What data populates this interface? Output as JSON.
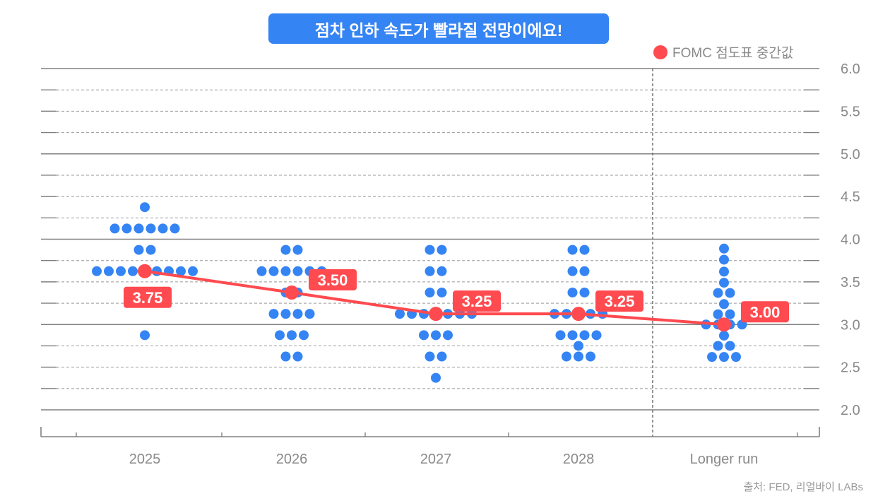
{
  "title": "점차 인하 속도가 빨라질 전망이에요!",
  "legend": {
    "label": "FOMC 점도표 중간값",
    "color": "#ff4a4f"
  },
  "source": "출처: FED, 리얼바이 LABs",
  "colors": {
    "dot": "#3584f4",
    "median": "#ff4a4f",
    "title_bg": "#3584f4"
  },
  "chart_data": {
    "type": "scatter",
    "title": "점차 인하 속도가 빨라질 전망이에요!",
    "xlabel": "",
    "ylabel": "",
    "ylim": [
      2.0,
      6.0
    ],
    "yticks": [
      "2.0",
      "2.5",
      "3.0",
      "3.5",
      "4.0",
      "4.5",
      "5.0",
      "5.5",
      "6.0"
    ],
    "grid": true,
    "legend_position": "top-right",
    "categories": [
      "2025",
      "2026",
      "2027",
      "2028",
      "Longer run"
    ],
    "dots": [
      [
        {
          "value": 4.375,
          "count": 1
        },
        {
          "value": 4.125,
          "count": 6
        },
        {
          "value": 3.875,
          "count": 2
        },
        {
          "value": 3.625,
          "count": 9
        },
        {
          "value": 2.875,
          "count": 1
        }
      ],
      [
        {
          "value": 3.875,
          "count": 2
        },
        {
          "value": 3.625,
          "count": 6
        },
        {
          "value": 3.375,
          "count": 2
        },
        {
          "value": 3.125,
          "count": 4
        },
        {
          "value": 2.875,
          "count": 3
        },
        {
          "value": 2.625,
          "count": 2
        }
      ],
      [
        {
          "value": 3.875,
          "count": 2
        },
        {
          "value": 3.625,
          "count": 2
        },
        {
          "value": 3.375,
          "count": 2
        },
        {
          "value": 3.125,
          "count": 7
        },
        {
          "value": 2.875,
          "count": 3
        },
        {
          "value": 2.625,
          "count": 2
        },
        {
          "value": 2.375,
          "count": 1
        }
      ],
      [
        {
          "value": 3.875,
          "count": 2
        },
        {
          "value": 3.625,
          "count": 2
        },
        {
          "value": 3.375,
          "count": 2
        },
        {
          "value": 3.125,
          "count": 5
        },
        {
          "value": 2.875,
          "count": 4
        },
        {
          "value": 2.75,
          "count": 1
        },
        {
          "value": 2.625,
          "count": 3
        }
      ],
      [
        {
          "value": 3.89,
          "count": 1
        },
        {
          "value": 3.76,
          "count": 1
        },
        {
          "value": 3.62,
          "count": 1
        },
        {
          "value": 3.49,
          "count": 1
        },
        {
          "value": 3.37,
          "count": 2
        },
        {
          "value": 3.24,
          "count": 1
        },
        {
          "value": 3.12,
          "count": 2
        },
        {
          "value": 3.0,
          "count": 4
        },
        {
          "value": 2.87,
          "count": 1
        },
        {
          "value": 2.75,
          "count": 2
        },
        {
          "value": 2.62,
          "count": 3
        }
      ]
    ],
    "median": {
      "name": "FOMC 점도표 중간값",
      "values": [
        3.625,
        3.375,
        3.125,
        3.125,
        3.0
      ],
      "labels": [
        "3.75",
        "3.50",
        "3.25",
        "3.25",
        "3.00"
      ]
    }
  }
}
